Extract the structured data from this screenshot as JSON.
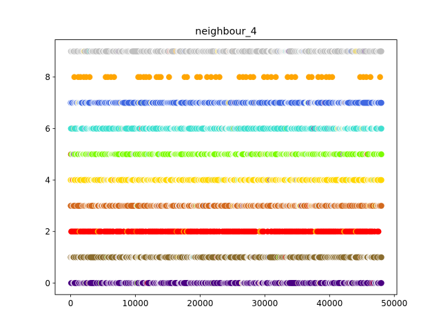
{
  "chart_data": {
    "type": "scatter",
    "title": "neighbour_4",
    "xlabel": "",
    "ylabel": "",
    "xlim": [
      -2400,
      50400
    ],
    "ylim": [
      -0.45,
      9.45
    ],
    "xticks": [
      0,
      10000,
      20000,
      30000,
      40000,
      50000
    ],
    "xtick_labels": [
      "0",
      "10000",
      "20000",
      "30000",
      "40000",
      "50000"
    ],
    "yticks": [
      0,
      2,
      4,
      6,
      8
    ],
    "ytick_labels": [
      "0",
      "2",
      "4",
      "6",
      "8"
    ],
    "grid": false,
    "legend": "none",
    "x_extent": [
      0,
      48000
    ],
    "rows": [
      {
        "y": 0,
        "color": "#4b0082",
        "density": "dense"
      },
      {
        "y": 1,
        "color": "#8b6d2f",
        "density": "dense"
      },
      {
        "y": 2,
        "color": "#ff0000",
        "density": "medium"
      },
      {
        "y": 3,
        "color": "#d2691e",
        "density": "dense"
      },
      {
        "y": 4,
        "color": "#ffd700",
        "density": "dense"
      },
      {
        "y": 5,
        "color": "#7cfc00",
        "density": "dense"
      },
      {
        "y": 6,
        "color": "#40e0d0",
        "density": "dense"
      },
      {
        "y": 7,
        "color": "#4169e1",
        "density": "dense"
      },
      {
        "y": 8,
        "color": "#ffa500",
        "density": "sparse"
      },
      {
        "y": 9,
        "color": "#c0c0c0",
        "density": "dense"
      }
    ],
    "row_accent_colors": [
      "#ff0000",
      "#4b0082",
      "#7cfc00",
      "#4169e1",
      "#ffa500",
      "#40e0d0",
      "#ffd700",
      "#d2691e",
      "#c0c0c0"
    ]
  }
}
